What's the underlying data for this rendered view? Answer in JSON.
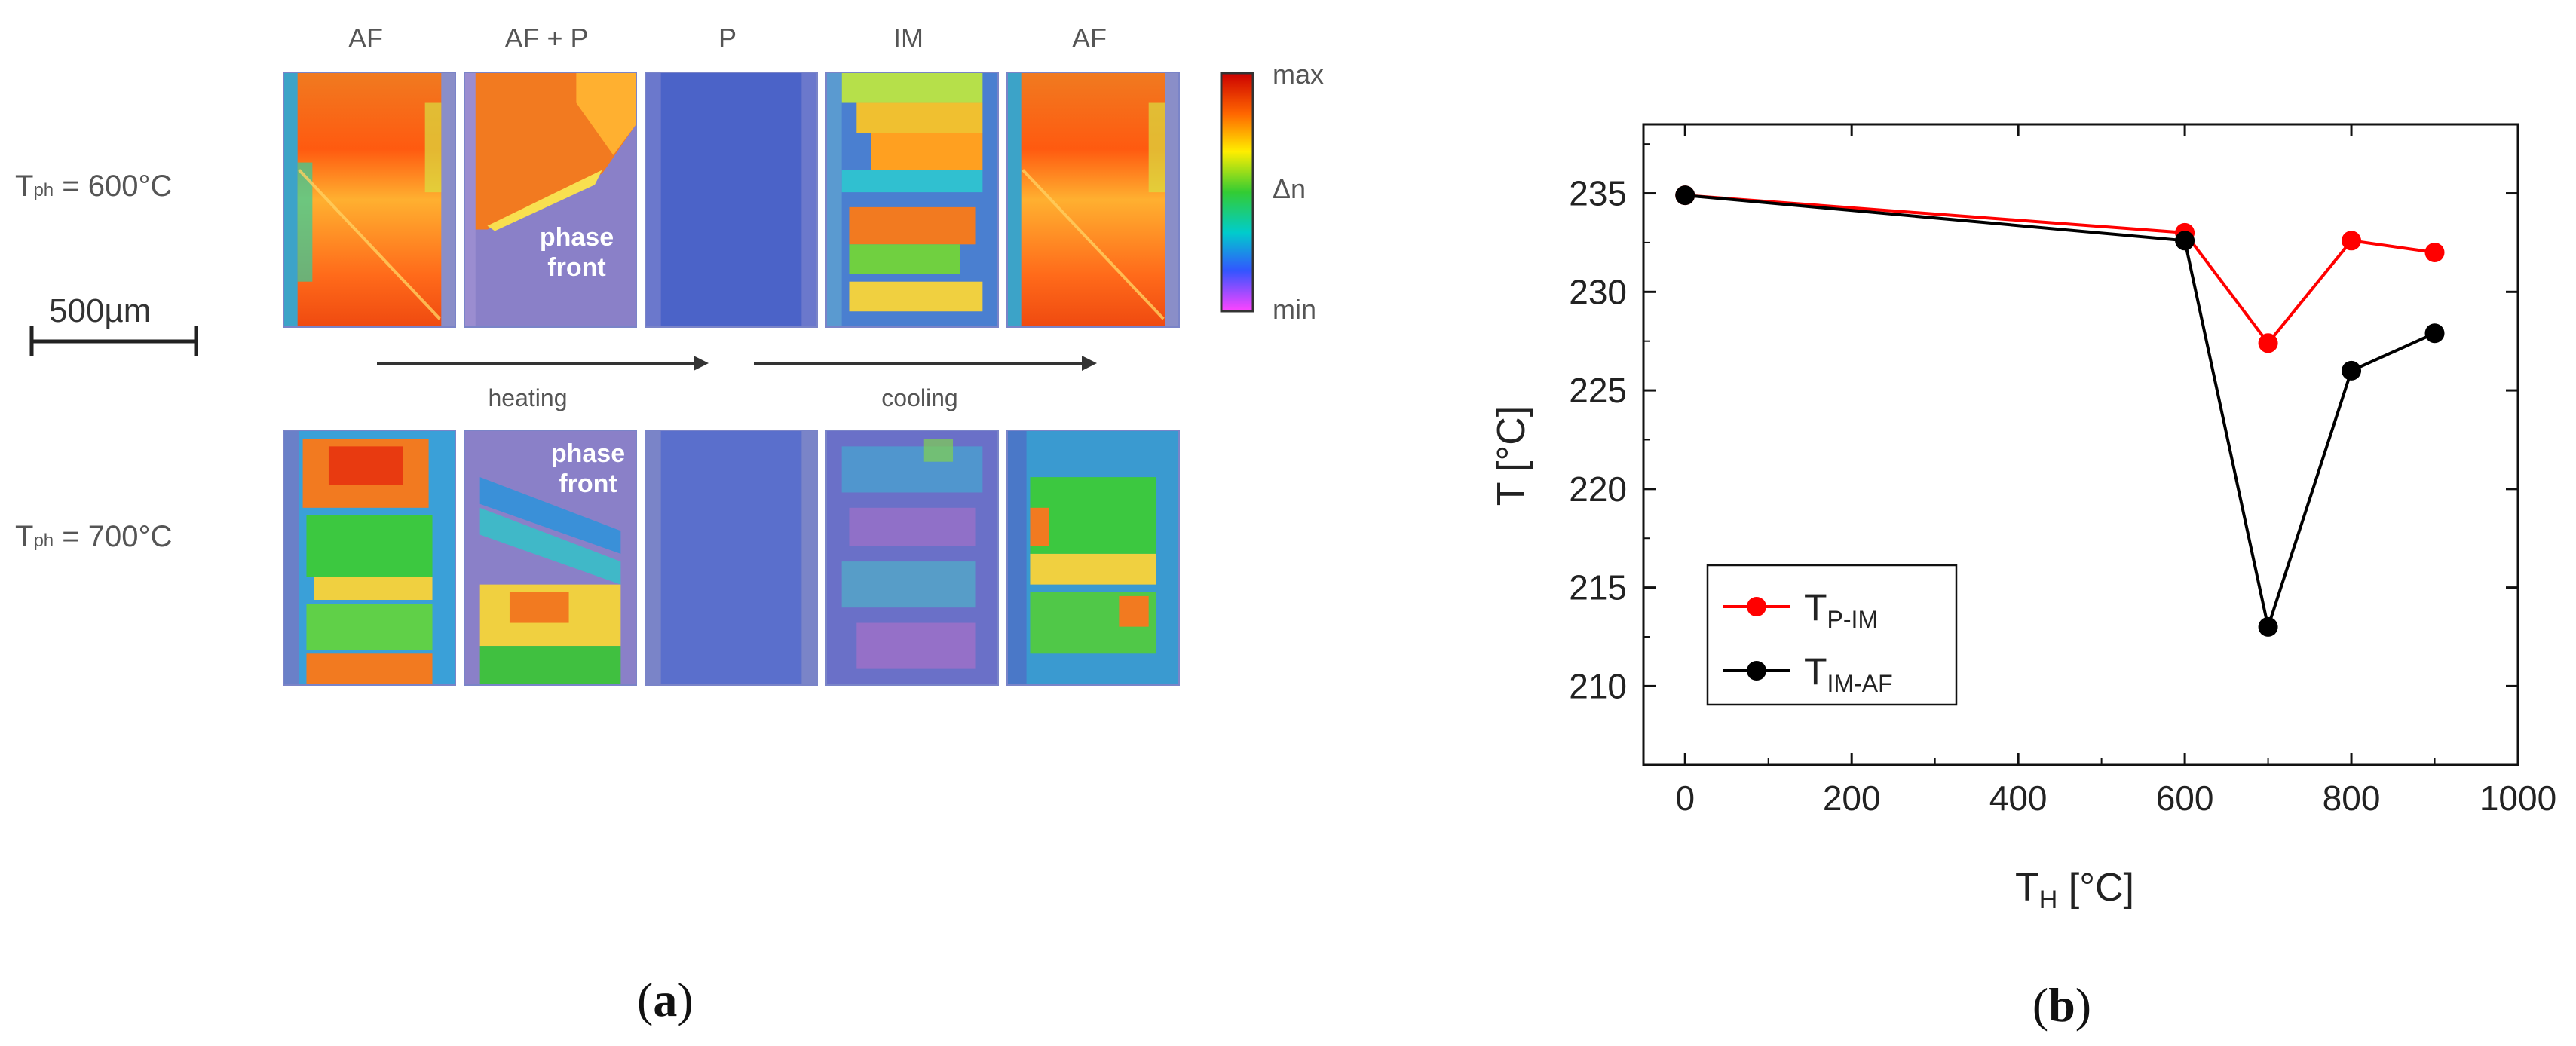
{
  "panel_a": {
    "columns": [
      "AF",
      "AF + P",
      "P",
      "IM",
      "AF"
    ],
    "rows": [
      {
        "label_main": "T",
        "label_sub": "ph",
        "label_rest": " = 600°C"
      },
      {
        "label_main": "T",
        "label_sub": "ph",
        "label_rest": " = 700°C"
      }
    ],
    "phase_front_top": "phase\nfront",
    "phase_front_bottom": "phase\nfront",
    "heating_label": "heating",
    "cooling_label": "cooling",
    "scale_bar": "500µm",
    "colorbar": {
      "max": "max",
      "mid": "Δn",
      "min": "min",
      "colors": [
        "#ff44ff",
        "#3355ff",
        "#00cccc",
        "#33cc33",
        "#ffee00",
        "#ff6600",
        "#cc0000"
      ]
    },
    "letter": "a"
  },
  "panel_b": {
    "letter": "b"
  },
  "chart_data": {
    "type": "line",
    "title": "",
    "xlabel_main": "T",
    "xlabel_sub": "H",
    "xlabel_rest": " [°C]",
    "ylabel": "T [°C]",
    "xlim": [
      -50,
      1000
    ],
    "ylim": [
      206,
      238.5
    ],
    "xticks": [
      0,
      200,
      400,
      600,
      800,
      1000
    ],
    "yticks": [
      210,
      215,
      220,
      225,
      230,
      235
    ],
    "grid": false,
    "legend_position": "bottom-left",
    "series": [
      {
        "name_main": "T",
        "name_sub": "P-IM",
        "color": "#ff0000",
        "x": [
          0,
          600,
          700,
          800,
          900
        ],
        "y": [
          234.9,
          233.0,
          227.4,
          232.6,
          232.0
        ]
      },
      {
        "name_main": "T",
        "name_sub": "IM-AF",
        "color": "#000000",
        "x": [
          0,
          600,
          700,
          800,
          900
        ],
        "y": [
          234.9,
          232.6,
          213.0,
          226.0,
          227.9
        ]
      }
    ]
  }
}
